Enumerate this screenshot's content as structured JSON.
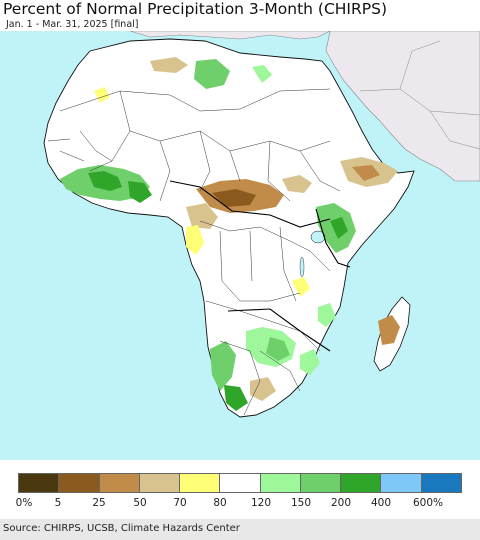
{
  "title": "Percent of Normal Precipitation 3-Month (CHIRPS)",
  "subtitle": "Jan. 1 - Mar. 31, 2025 [final]",
  "legend": {
    "colors": [
      "#4a3810",
      "#8a5a1e",
      "#c18c4a",
      "#d8c38f",
      "#ffff77",
      "#ffffff",
      "#9ef79a",
      "#6fcf6a",
      "#2fa62a",
      "#7ec8f8",
      "#1a78be"
    ],
    "labels": [
      "0%",
      "5",
      "25",
      "50",
      "70",
      "80",
      "120",
      "150",
      "200",
      "400",
      "600%"
    ]
  },
  "source": "Source: CHIRPS, UCSB, Climate Hazards Center"
}
